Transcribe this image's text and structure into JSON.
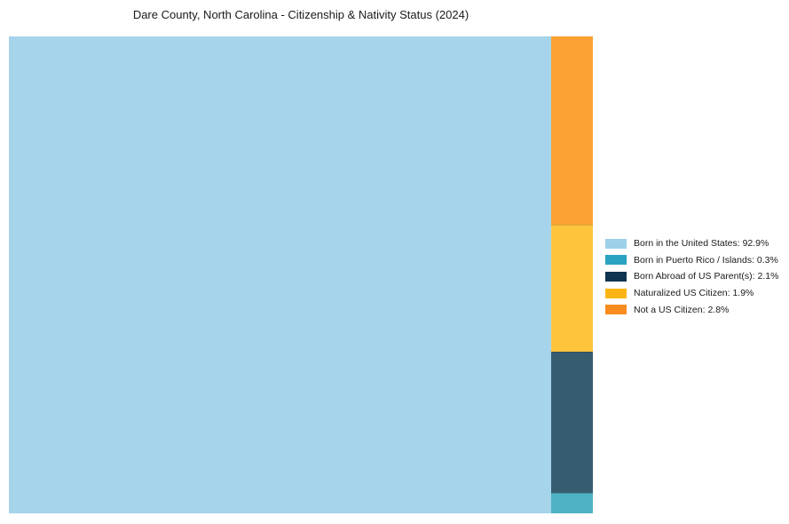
{
  "chart_data": {
    "type": "treemap",
    "title": "Dare County, North Carolina - Citizenship & Nativity Status (2024)",
    "items": [
      {
        "label": "Born in the United States",
        "value_pct": 92.9,
        "legend_text": "Born in the United States: 92.9%",
        "legend_color": "#9ed0e8",
        "fill_color": "#a5d4eb"
      },
      {
        "label": "Born in Puerto Rico / Islands",
        "value_pct": 0.3,
        "legend_text": "Born in Puerto Rico / Islands: 0.3%",
        "legend_color": "#29a3c1",
        "fill_color": "#4fb2c4"
      },
      {
        "label": "Born Abroad of US Parent(s)",
        "value_pct": 2.1,
        "legend_text": "Born Abroad of US Parent(s): 2.1%",
        "legend_color": "#103350",
        "fill_color": "#365c70"
      },
      {
        "label": "Naturalized US Citizen",
        "value_pct": 1.9,
        "legend_text": "Naturalized US Citizen: 1.9%",
        "legend_color": "#fdb515",
        "fill_color": "#fec53c"
      },
      {
        "label": "Not a US Citizen",
        "value_pct": 2.8,
        "legend_text": "Not a US Citizen: 2.8%",
        "legend_color": "#f78c1f",
        "fill_color": "#f9a133"
      }
    ],
    "layout": {
      "left_item_index": 0,
      "right_column_top_to_bottom": [
        4,
        3,
        2,
        1
      ],
      "legend_position": "right-center",
      "background": "#ffffff",
      "grid": false
    }
  }
}
